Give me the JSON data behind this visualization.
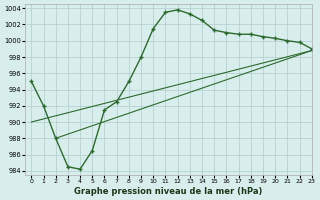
{
  "line1_x": [
    0,
    1,
    2,
    3,
    4,
    5,
    6,
    7,
    8,
    9,
    10,
    11,
    12,
    13,
    14,
    15,
    16,
    17,
    18,
    19,
    20,
    21,
    22,
    23
  ],
  "line1_y": [
    995.0,
    992.0,
    988.0,
    984.5,
    984.2,
    986.5,
    991.5,
    992.5,
    995.0,
    998.0,
    1001.5,
    1003.5,
    1003.8,
    1003.3,
    1002.5,
    1001.3,
    1001.0,
    1000.8,
    1000.8,
    1000.5,
    1000.3,
    1000.0,
    999.8,
    999.0
  ],
  "line2_x": [
    0,
    23
  ],
  "line2_y": [
    990.0,
    998.8
  ],
  "line3_x": [
    2,
    23
  ],
  "line3_y": [
    988.0,
    998.8
  ],
  "bg_color": "#d8eeed",
  "line_color": "#2d6a2d",
  "grid_color": "#b0cccc",
  "xlabel": "Graphe pression niveau de la mer (hPa)",
  "xlim": [
    -0.5,
    23
  ],
  "ylim": [
    983.5,
    1004.5
  ],
  "yticks": [
    984,
    986,
    988,
    990,
    992,
    994,
    996,
    998,
    1000,
    1002,
    1004
  ],
  "xticks": [
    0,
    1,
    2,
    3,
    4,
    5,
    6,
    7,
    8,
    9,
    10,
    11,
    12,
    13,
    14,
    15,
    16,
    17,
    18,
    19,
    20,
    21,
    22,
    23
  ]
}
